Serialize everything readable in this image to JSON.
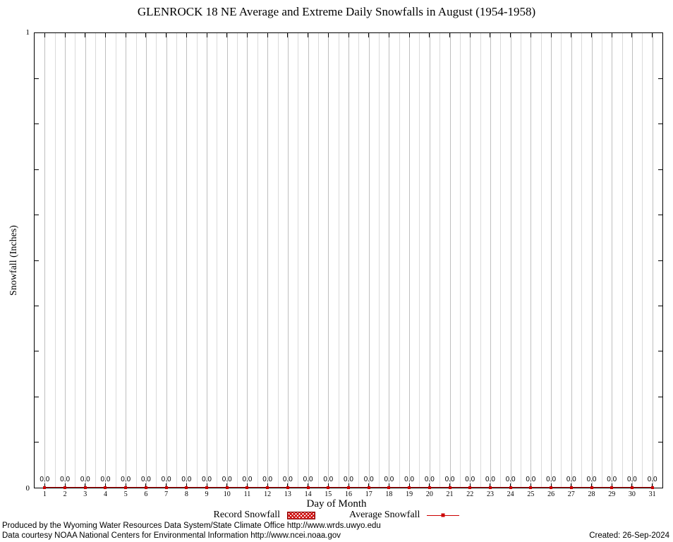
{
  "title": "GLENROCK 18 NE Average and Extreme Daily Snowfalls in August (1954-1958)",
  "y_axis": {
    "label": "Snowfall (Inches)",
    "top_tick_label": "1",
    "bottom_tick_label": "0"
  },
  "x_axis": {
    "label": "Day of Month"
  },
  "legend": {
    "record_label": "Record Snowfall",
    "average_label": "Average Snowfall"
  },
  "footer": {
    "line1": "Produced by the Wyoming Water Resources Data System/State Climate Office http://www.wrds.uwyo.edu",
    "line2": "Data courtesy NOAA National Centers for Environmental Information http://www.ncei.noaa.gov",
    "created": "Created: 26-Sep-2024"
  },
  "colors": {
    "series": "#cc0000",
    "series_dark": "#880000",
    "grid_major": "#bfbfbf",
    "grid_minor": "#dadada",
    "axis": "#000000"
  },
  "chart_data": {
    "type": "line",
    "title": "GLENROCK 18 NE Average and Extreme Daily Snowfalls in August (1954-1958)",
    "xlabel": "Day of Month",
    "ylabel": "Snowfall (Inches)",
    "x": [
      1,
      2,
      3,
      4,
      5,
      6,
      7,
      8,
      9,
      10,
      11,
      12,
      13,
      14,
      15,
      16,
      17,
      18,
      19,
      20,
      21,
      22,
      23,
      24,
      25,
      26,
      27,
      28,
      29,
      30,
      31
    ],
    "series": [
      {
        "name": "Record Snowfall",
        "style": "boxes-hatched",
        "values": [
          0,
          0,
          0,
          0,
          0,
          0,
          0,
          0,
          0,
          0,
          0,
          0,
          0,
          0,
          0,
          0,
          0,
          0,
          0,
          0,
          0,
          0,
          0,
          0,
          0,
          0,
          0,
          0,
          0,
          0,
          0
        ]
      },
      {
        "name": "Average Snowfall",
        "style": "linespoints",
        "values": [
          0,
          0,
          0,
          0,
          0,
          0,
          0,
          0,
          0,
          0,
          0,
          0,
          0,
          0,
          0,
          0,
          0,
          0,
          0,
          0,
          0,
          0,
          0,
          0,
          0,
          0,
          0,
          0,
          0,
          0,
          0
        ]
      }
    ],
    "point_labels": [
      "0.0",
      "0.0",
      "0.0",
      "0.0",
      "0.0",
      "0.0",
      "0.0",
      "0.0",
      "0.0",
      "0.0",
      "0.0",
      "0.0",
      "0.0",
      "0.0",
      "0.0",
      "0.0",
      "0.0",
      "0.0",
      "0.0",
      "0.0",
      "0.0",
      "0.0",
      "0.0",
      "0.0",
      "0.0",
      "0.0",
      "0.0",
      "0.0",
      "0.0",
      "0.0",
      "0.0"
    ],
    "ylim": [
      0,
      1
    ],
    "xlim": [
      0.5,
      31.5
    ],
    "yticks_labeled": [
      0,
      1
    ],
    "grid": true,
    "legend_position": "bottom-center"
  }
}
